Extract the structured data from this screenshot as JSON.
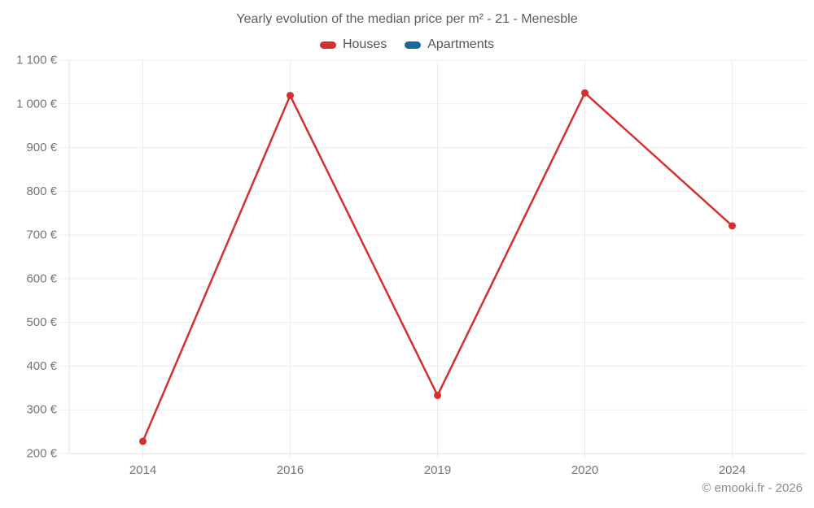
{
  "chart_data": {
    "type": "line",
    "title": "Yearly evolution of the median price per m² - 21 - Menesble",
    "categories": [
      "2014",
      "2016",
      "2019",
      "2020",
      "2024"
    ],
    "series": [
      {
        "name": "Houses",
        "color": "#d62f2f",
        "values": [
          228,
          1019,
          333,
          1025,
          721
        ]
      },
      {
        "name": "Apartments",
        "color": "#17699e",
        "values": []
      }
    ],
    "xlabel": "",
    "ylabel": "",
    "ylim": [
      200,
      1100
    ],
    "y_tick_step": 100,
    "y_tick_labels": [
      "200 €",
      "300 €",
      "400 €",
      "500 €",
      "600 €",
      "700 €",
      "800 €",
      "900 €",
      "1 000 €",
      "1 100 €"
    ],
    "grid": true,
    "legend_position": "top"
  },
  "footer": {
    "text": "© emooki.fr - 2026"
  },
  "styles": {
    "grid_color": "#ececec",
    "axis_color": "#e0e0e0",
    "tick_text_color": "#757575",
    "point_radius": 4.5,
    "line_width": 2.5
  }
}
